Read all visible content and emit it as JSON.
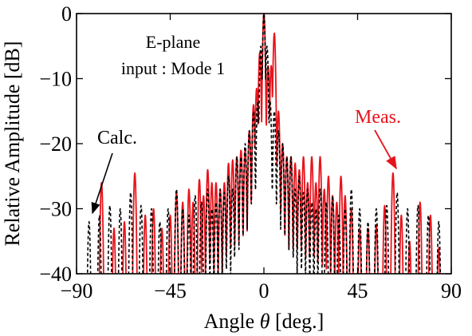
{
  "chart_data": {
    "type": "line",
    "annotation_lines": [
      "E-plane",
      "input : Mode 1"
    ],
    "xlabel_prefix": "Angle ",
    "xlabel_symbol": "θ",
    "xlabel_suffix": " [deg.]",
    "ylabel": "Relative Amplitude [dB]",
    "xlim": [
      -90,
      90
    ],
    "ylim": [
      -40,
      0
    ],
    "xticks": [
      -90,
      -45,
      0,
      45,
      90
    ],
    "xtick_labels": [
      "−90",
      "−45",
      "0",
      "45",
      "90"
    ],
    "yticks": [
      0,
      -10,
      -20,
      -30,
      -40
    ],
    "ytick_labels": [
      "0",
      "−10",
      "−20",
      "−30",
      "−40"
    ],
    "grid": false,
    "series": [
      {
        "name": "Meas.",
        "color": "#e8141c",
        "dash": "solid",
        "label": "Meas.",
        "peaks": [
          [
            -78,
            -26
          ],
          [
            -72,
            -33
          ],
          [
            -67,
            -32
          ],
          [
            -62,
            -24.5
          ],
          [
            -57,
            -31
          ],
          [
            -53,
            -30
          ],
          [
            -49,
            -33
          ],
          [
            -45,
            -31
          ],
          [
            -42,
            -27.5
          ],
          [
            -39,
            -29
          ],
          [
            -36,
            -27
          ],
          [
            -34,
            -29
          ],
          [
            -31,
            -25.5
          ],
          [
            -29,
            -28
          ],
          [
            -27,
            -24
          ],
          [
            -25,
            -26
          ],
          [
            -23,
            -26
          ],
          [
            -21,
            -27
          ],
          [
            -19,
            -26
          ],
          [
            -17,
            -23
          ],
          [
            -15,
            -22.5
          ],
          [
            -13,
            -22
          ],
          [
            -11,
            -21
          ],
          [
            -9,
            -21
          ],
          [
            -7,
            -18
          ],
          [
            -5,
            -14
          ],
          [
            -3.5,
            -11.5
          ],
          [
            -2,
            -6
          ],
          [
            0,
            0
          ],
          [
            2,
            -8
          ],
          [
            3.5,
            -8
          ],
          [
            5,
            -3
          ],
          [
            7,
            -15
          ],
          [
            9,
            -20
          ],
          [
            11,
            -22
          ],
          [
            13,
            -22
          ],
          [
            15,
            -23
          ],
          [
            17,
            -24
          ],
          [
            19,
            -22
          ],
          [
            21,
            -26
          ],
          [
            23,
            -22
          ],
          [
            25,
            -26
          ],
          [
            27,
            -22
          ],
          [
            29,
            -27
          ],
          [
            31,
            -25
          ],
          [
            33,
            -28
          ],
          [
            35,
            -29
          ],
          [
            37,
            -25
          ],
          [
            39,
            -28
          ],
          [
            42,
            -30
          ],
          [
            46,
            -33
          ],
          [
            50,
            -33
          ],
          [
            54,
            -32.5
          ],
          [
            58,
            -29.5
          ],
          [
            62,
            -24.5
          ],
          [
            66,
            -31
          ],
          [
            70,
            -35
          ],
          [
            75,
            -29
          ],
          [
            80,
            -31
          ],
          [
            84,
            -36
          ]
        ]
      },
      {
        "name": "Calc.",
        "color": "#000000",
        "dash": "dashed",
        "label": "Calc.",
        "peaks": [
          [
            -84,
            -32
          ],
          [
            -79,
            -31
          ],
          [
            -74,
            -29.5
          ],
          [
            -69,
            -30
          ],
          [
            -64,
            -27.5
          ],
          [
            -59,
            -29.5
          ],
          [
            -54,
            -30
          ],
          [
            -50,
            -32
          ],
          [
            -46,
            -30
          ],
          [
            -42,
            -27
          ],
          [
            -39,
            -30
          ],
          [
            -36,
            -31
          ],
          [
            -33,
            -28
          ],
          [
            -30,
            -29
          ],
          [
            -27,
            -27
          ],
          [
            -25,
            -30
          ],
          [
            -23,
            -29
          ],
          [
            -21,
            -27
          ],
          [
            -19,
            -27.5
          ],
          [
            -17,
            -25
          ],
          [
            -15,
            -27
          ],
          [
            -13,
            -22
          ],
          [
            -11,
            -22
          ],
          [
            -9,
            -20
          ],
          [
            -7,
            -18
          ],
          [
            -5,
            -15
          ],
          [
            -3,
            -13.5
          ],
          [
            -1.5,
            -5
          ],
          [
            0,
            0
          ],
          [
            1.5,
            -5
          ],
          [
            3,
            -13.5
          ],
          [
            5,
            -15
          ],
          [
            7,
            -18
          ],
          [
            9,
            -20
          ],
          [
            11,
            -22
          ],
          [
            13,
            -22
          ],
          [
            15,
            -27
          ],
          [
            17,
            -25
          ],
          [
            19,
            -27.5
          ],
          [
            21,
            -27
          ],
          [
            23,
            -29
          ],
          [
            25,
            -30
          ],
          [
            27,
            -27
          ],
          [
            30,
            -29
          ],
          [
            33,
            -28
          ],
          [
            36,
            -31
          ],
          [
            39,
            -30
          ],
          [
            42,
            -27
          ],
          [
            46,
            -30
          ],
          [
            50,
            -32
          ],
          [
            54,
            -30
          ],
          [
            59,
            -29.5
          ],
          [
            64,
            -27.5
          ],
          [
            69,
            -30
          ],
          [
            74,
            -29.5
          ],
          [
            79,
            -31
          ],
          [
            84,
            -32
          ]
        ]
      }
    ]
  }
}
